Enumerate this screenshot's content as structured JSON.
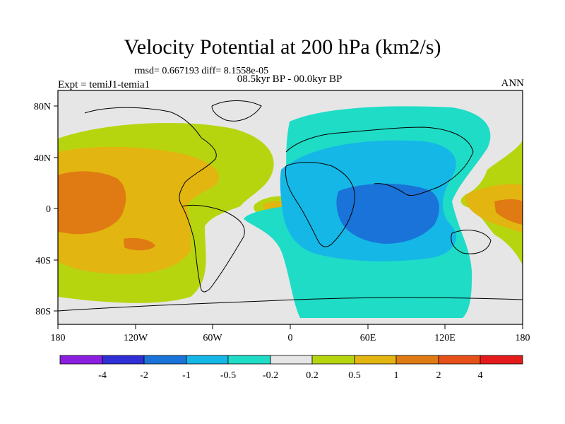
{
  "title": "Velocity Potential at 200 hPa (km2/s)",
  "stats_line": "rmsd= 0.667193 diff= 8.1558e-05",
  "experiment": "Expt = temiJ1-temia1",
  "period": "08.5kyr BP - 00.0kyr BP",
  "season": "ANN",
  "lat_ticks": [
    "80N",
    "40N",
    "0",
    "40S",
    "80S"
  ],
  "lon_ticks": [
    "180",
    "120W",
    "60W",
    "0",
    "60E",
    "120E",
    "180"
  ],
  "colorbar": {
    "labels": [
      "-4",
      "-2",
      "-1",
      "-0.5",
      "-0.2",
      "0.2",
      "0.5",
      "1",
      "2",
      "4"
    ],
    "colors": [
      "#8b1fe0",
      "#2f2fd6",
      "#1a73d8",
      "#15b7e6",
      "#1fdcc7",
      "#e6e6e6",
      "#b7d50f",
      "#e2b510",
      "#e07a12",
      "#e8501a",
      "#e51b1b"
    ]
  },
  "colors": {
    "background_field": "#e6e6e6",
    "coast": "#000000"
  }
}
